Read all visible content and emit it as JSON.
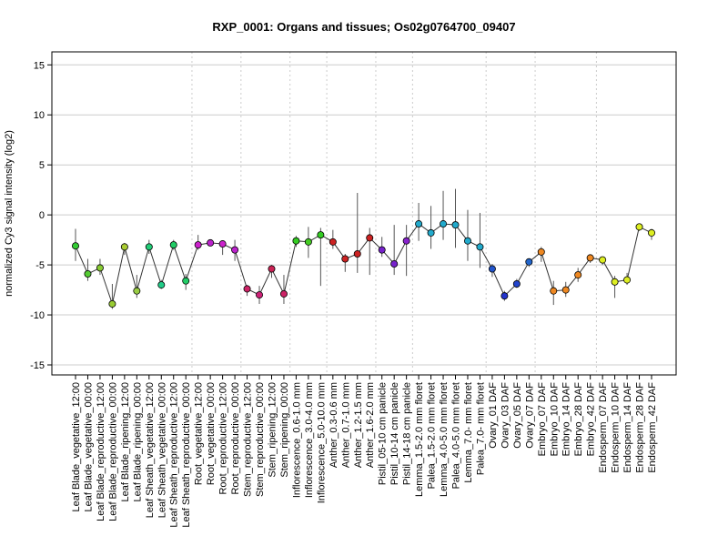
{
  "chart_data": {
    "type": "line",
    "title": "RXP_0001: Organs and tissues; Os02g0764700_09407",
    "xlabel": "",
    "ylabel": "normalized Cy3 signal intensity (log2)",
    "ylim": [
      -16,
      16.3
    ],
    "yticks": [
      15,
      10,
      5,
      0,
      -5,
      -10,
      -15
    ],
    "grid": true,
    "legend": "none",
    "categories": [
      "Leaf Blade_vegetative_12:00",
      "Leaf Blade_vegetative_00:00",
      "Leaf Blade_reproductive_12:00",
      "Leaf Blade_reproductive_00:00",
      "Leaf Blade_ripening_12:00",
      "Leaf Blade_ripening_00:00",
      "Leaf Sheath_vegetative_12:00",
      "Leaf Sheath_vegetative_00:00",
      "Leaf Sheath_reproductive_12:00",
      "Leaf Sheath_reproductive_00:00",
      "Root_vegetative_12:00",
      "Root_vegetative_00:00",
      "Root_reproductive_12:00",
      "Root_reproductive_00:00",
      "Stem_reproductive_12:00",
      "Stem_reproductive_00:00",
      "Stem_ripening_12:00",
      "Stem_ripening_00:00",
      "Inflorescence_0.6-1.0 mm",
      "Inflorescence_3.0-4.0 mm",
      "Inflorescence_5.0-10.0 mm",
      "Anther_0.3-0.6 mm",
      "Anther_0.7-1.0 mm",
      "Anther_1.2-1.5 mm",
      "Anther_1.6-2.0 mm",
      "Pistil_05-10 cm panicle",
      "Pistil_10-14 cm panicle",
      "Pistil_14-18 cm panicle",
      "Lemma_1.5-2.0 mm floret",
      "Palea_1.5-2.0 mm floret",
      "Lemma_4.0-5.0 mm floret",
      "Palea_4.0-5.0 mm floret",
      "Lemma_7.0- mm floret",
      "Palea_7.0- mm floret",
      "Ovary_01 DAF",
      "Ovary_03 DAF",
      "Ovary_05 DAF",
      "Ovary_07 DAF",
      "Embryo_07 DAF",
      "Embryo_10 DAF",
      "Embryo_14 DAF",
      "Embryo_28 DAF",
      "Embryo_42 DAF",
      "Endosperm_07 DAF",
      "Endosperm_10 DAF",
      "Endosperm_14 DAF",
      "Endosperm_28 DAF",
      "Endosperm_42 DAF"
    ],
    "values": [
      -3.1,
      -5.9,
      -5.3,
      -8.9,
      -3.2,
      -7.6,
      -3.2,
      -7.0,
      -3.0,
      -6.6,
      -3.0,
      -2.8,
      -2.9,
      -3.5,
      -7.4,
      -8.0,
      -5.4,
      -7.9,
      -2.6,
      -2.7,
      -2.0,
      -2.7,
      -4.4,
      -3.9,
      -2.3,
      -3.5,
      -4.9,
      -2.6,
      -0.9,
      -1.8,
      -0.9,
      -1.0,
      -2.6,
      -3.2,
      -5.4,
      -8.1,
      -6.9,
      -4.7,
      -3.7,
      -7.6,
      -7.5,
      -6.0,
      -4.3,
      -4.5,
      -6.7,
      -6.5,
      -1.2,
      -1.8
    ],
    "err_low": [
      -4.6,
      -6.6,
      -6.0,
      -9.4,
      -4.0,
      -8.3,
      -3.9,
      -7.4,
      -3.5,
      -7.5,
      -3.5,
      -3.1,
      -4.0,
      -4.6,
      -8.1,
      -8.9,
      -6.3,
      -8.9,
      -3.2,
      -4.3,
      -7.1,
      -3.4,
      -5.7,
      -5.8,
      -6.0,
      -4.2,
      -6.0,
      -6.1,
      -2.6,
      -3.4,
      -2.5,
      -3.3,
      -4.6,
      -5.3,
      -6.2,
      -8.6,
      -7.3,
      -5.2,
      -4.7,
      -9.0,
      -8.2,
      -6.7,
      -4.8,
      -5.0,
      -8.3,
      -7.0,
      -1.6,
      -2.5
    ],
    "err_high": [
      -1.4,
      -4.4,
      -4.4,
      -6.9,
      -2.8,
      -6.0,
      -2.5,
      -6.5,
      -2.5,
      -5.9,
      -2.0,
      -2.6,
      -2.6,
      -2.5,
      -7.0,
      -7.1,
      -5.0,
      -6.0,
      -2.1,
      -1.2,
      -1.3,
      -1.5,
      -3.9,
      2.2,
      -1.3,
      -2.2,
      -1.0,
      -1.0,
      1.2,
      0.9,
      2.4,
      2.6,
      0.5,
      0.2,
      -4.9,
      -7.6,
      -6.4,
      -4.4,
      -3.2,
      -6.6,
      -6.7,
      -5.3,
      -4.0,
      -4.2,
      -6.1,
      -5.8,
      -0.9,
      -1.4
    ],
    "colors": [
      "#33cc33",
      "#55cc33",
      "#88cc33",
      "#99cc33",
      "#aacc33",
      "#99cc44",
      "#22cc77",
      "#22cc88",
      "#22cc66",
      "#22cc66",
      "#cc22cc",
      "#bb22cc",
      "#cc22cc",
      "#bb22cc",
      "#cc2266",
      "#cc2277",
      "#cc2255",
      "#cc2266",
      "#33cc22",
      "#44cc22",
      "#33cc22",
      "#cc2222",
      "#cc2222",
      "#cc2222",
      "#cc2222",
      "#7722cc",
      "#7722cc",
      "#8822cc",
      "#22aacc",
      "#22aacc",
      "#22aacc",
      "#22aacc",
      "#22aacc",
      "#22aacc",
      "#2255cc",
      "#2233cc",
      "#2244cc",
      "#2266cc",
      "#ee8822",
      "#ee8822",
      "#ee8822",
      "#ee8822",
      "#ee8822",
      "#ddee22",
      "#ddee22",
      "#ddee22",
      "#ddee22",
      "#ddee22"
    ],
    "group_separators_after": [
      9,
      13,
      17,
      20,
      24,
      27,
      33,
      37,
      42
    ]
  }
}
